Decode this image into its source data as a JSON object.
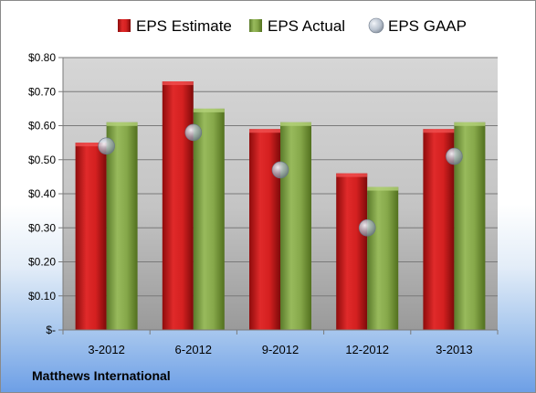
{
  "company": "Matthews International",
  "colors": {
    "estimate": "#d42020",
    "actual": "#86a84a",
    "gaap": "#a8b4c4"
  },
  "chart_data": {
    "type": "bar",
    "categories": [
      "3-2012",
      "6-2012",
      "9-2012",
      "12-2012",
      "3-2013"
    ],
    "series": [
      {
        "name": "EPS Estimate",
        "kind": "bar",
        "values": [
          0.55,
          0.73,
          0.59,
          0.46,
          0.59
        ]
      },
      {
        "name": "EPS Actual",
        "kind": "bar",
        "values": [
          0.61,
          0.65,
          0.61,
          0.42,
          0.61
        ]
      },
      {
        "name": "EPS GAAP",
        "kind": "marker",
        "values": [
          0.54,
          0.58,
          0.47,
          0.3,
          0.51
        ]
      }
    ],
    "ylim": [
      0,
      0.8
    ],
    "yticks": [
      0,
      0.1,
      0.2,
      0.3,
      0.4,
      0.5,
      0.6,
      0.7,
      0.8
    ],
    "ytick_labels": [
      "$-",
      "$0.10",
      "$0.20",
      "$0.30",
      "$0.40",
      "$0.50",
      "$0.60",
      "$0.70",
      "$0.80"
    ],
    "legend_position": "top",
    "grid": true
  }
}
